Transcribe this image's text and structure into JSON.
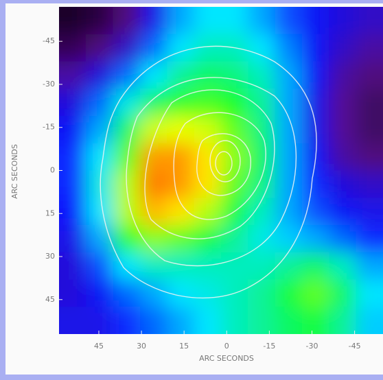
{
  "chart_data": {
    "type": "heatmap",
    "x_label": "ARC SECONDS",
    "y_label": "ARC SECONDS",
    "xlim": [
      59,
      -55
    ],
    "ylim": [
      -57,
      57
    ],
    "xticks": [
      45,
      30,
      15,
      0,
      -15,
      -30,
      -45
    ],
    "yticks": [
      -45,
      -30,
      -15,
      0,
      15,
      30,
      45
    ],
    "zlim": [
      0,
      1
    ],
    "colormap": [
      "#000000",
      "#5a0a8c",
      "#0a14ff",
      "#00e6ff",
      "#14ff28",
      "#ffff00",
      "#ff0000"
    ],
    "z": [
      [
        0.05,
        0.08,
        0.15,
        0.3,
        0.45,
        0.5,
        0.5,
        0.45,
        0.38,
        0.32,
        0.28,
        0.25
      ],
      [
        0.1,
        0.15,
        0.25,
        0.4,
        0.5,
        0.55,
        0.55,
        0.5,
        0.42,
        0.32,
        0.25,
        0.2
      ],
      [
        0.2,
        0.28,
        0.4,
        0.5,
        0.58,
        0.62,
        0.6,
        0.55,
        0.45,
        0.32,
        0.2,
        0.15
      ],
      [
        0.28,
        0.4,
        0.52,
        0.62,
        0.68,
        0.7,
        0.67,
        0.58,
        0.45,
        0.3,
        0.18,
        0.12
      ],
      [
        0.32,
        0.45,
        0.62,
        0.8,
        0.82,
        0.8,
        0.72,
        0.6,
        0.45,
        0.3,
        0.18,
        0.12
      ],
      [
        0.35,
        0.5,
        0.72,
        0.9,
        0.9,
        0.85,
        0.75,
        0.62,
        0.45,
        0.32,
        0.2,
        0.15
      ],
      [
        0.35,
        0.52,
        0.78,
        0.92,
        0.9,
        0.85,
        0.72,
        0.6,
        0.45,
        0.35,
        0.28,
        0.25
      ],
      [
        0.33,
        0.5,
        0.78,
        0.88,
        0.85,
        0.78,
        0.65,
        0.55,
        0.45,
        0.38,
        0.32,
        0.3
      ],
      [
        0.3,
        0.45,
        0.68,
        0.75,
        0.72,
        0.65,
        0.58,
        0.52,
        0.48,
        0.45,
        0.4,
        0.35
      ],
      [
        0.28,
        0.38,
        0.5,
        0.55,
        0.55,
        0.55,
        0.55,
        0.55,
        0.58,
        0.62,
        0.55,
        0.45
      ],
      [
        0.28,
        0.32,
        0.4,
        0.45,
        0.5,
        0.52,
        0.55,
        0.58,
        0.65,
        0.72,
        0.62,
        0.5
      ],
      [
        0.3,
        0.3,
        0.35,
        0.4,
        0.45,
        0.5,
        0.55,
        0.58,
        0.62,
        0.65,
        0.58,
        0.48
      ]
    ]
  }
}
